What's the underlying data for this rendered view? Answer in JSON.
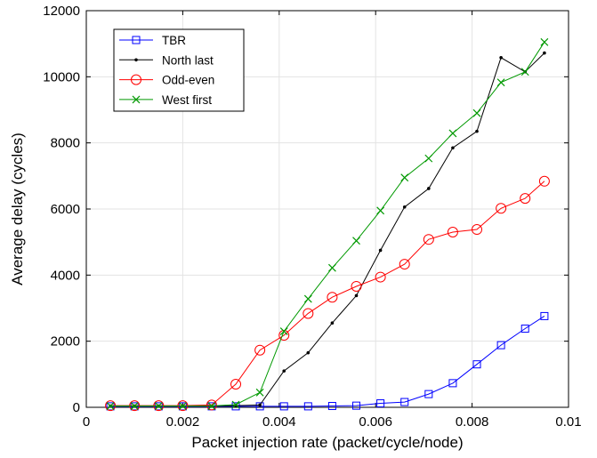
{
  "chart_data": {
    "type": "line",
    "xlabel": "Packet injection rate (packet/cycle/node)",
    "ylabel": "Average delay (cycles)",
    "xlim": [
      0,
      0.01
    ],
    "ylim": [
      0,
      12000
    ],
    "xticks": [
      0,
      0.002,
      0.004,
      0.006,
      0.008,
      0.01
    ],
    "xtick_labels": [
      "0",
      "0.002",
      "0.004",
      "0.006",
      "0.008",
      "0.01"
    ],
    "yticks": [
      0,
      2000,
      4000,
      6000,
      8000,
      10000,
      12000
    ],
    "ytick_labels": [
      "0",
      "2000",
      "4000",
      "6000",
      "8000",
      "10000",
      "12000"
    ],
    "grid": true,
    "legend_position": "top-left",
    "x": [
      0.0005,
      0.001,
      0.0015,
      0.002,
      0.0026,
      0.0031,
      0.0036,
      0.0041,
      0.0046,
      0.0051,
      0.0056,
      0.0061,
      0.0066,
      0.0071,
      0.0076,
      0.0081,
      0.0086,
      0.0091,
      0.0095
    ],
    "series": [
      {
        "name": "TBR",
        "color": "#0000ff",
        "marker": "square",
        "values": [
          30,
          30,
          30,
          30,
          30,
          30,
          30,
          30,
          30,
          40,
          50,
          120,
          160,
          400,
          730,
          1300,
          1880,
          2380,
          2760
        ]
      },
      {
        "name": "North last",
        "color": "#000000",
        "marker": "dot",
        "values": [
          40,
          40,
          40,
          40,
          40,
          50,
          70,
          1100,
          1650,
          2550,
          3380,
          4750,
          6060,
          6620,
          7850,
          8350,
          10580,
          10150,
          10720
        ]
      },
      {
        "name": "Odd-even",
        "color": "#ff0000",
        "marker": "circle",
        "values": [
          50,
          50,
          50,
          50,
          70,
          700,
          1730,
          2180,
          2840,
          3330,
          3660,
          3940,
          4330,
          5080,
          5300,
          5380,
          6020,
          6320,
          6840
        ]
      },
      {
        "name": "West first",
        "color": "#009900",
        "marker": "x",
        "values": [
          40,
          40,
          40,
          40,
          40,
          80,
          450,
          2300,
          3280,
          4220,
          5040,
          5950,
          6950,
          7530,
          8290,
          8900,
          9830,
          10150,
          11050
        ]
      }
    ]
  }
}
